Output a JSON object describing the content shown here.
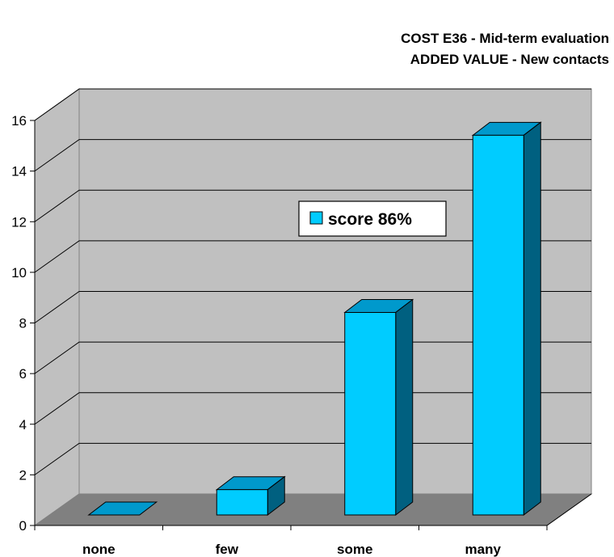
{
  "chart_data": {
    "type": "bar",
    "title": "COST E36 - Mid-term evaluation",
    "subtitle": "ADDED VALUE - New contacts",
    "categories": [
      "none",
      "few",
      "some",
      "many"
    ],
    "series": [
      {
        "name": "score 86%",
        "values": [
          0,
          1,
          8,
          15
        ]
      }
    ],
    "ylim": [
      0,
      16
    ],
    "yticks": [
      0,
      2,
      4,
      6,
      8,
      10,
      12,
      14,
      16
    ],
    "grid": true,
    "legend": "center-right",
    "three_d": true
  },
  "colors": {
    "bar_front": "#00ccff",
    "bar_top": "#0099cc",
    "bar_side": "#006080",
    "wall": "#c0c0c0",
    "floor": "#808080"
  }
}
